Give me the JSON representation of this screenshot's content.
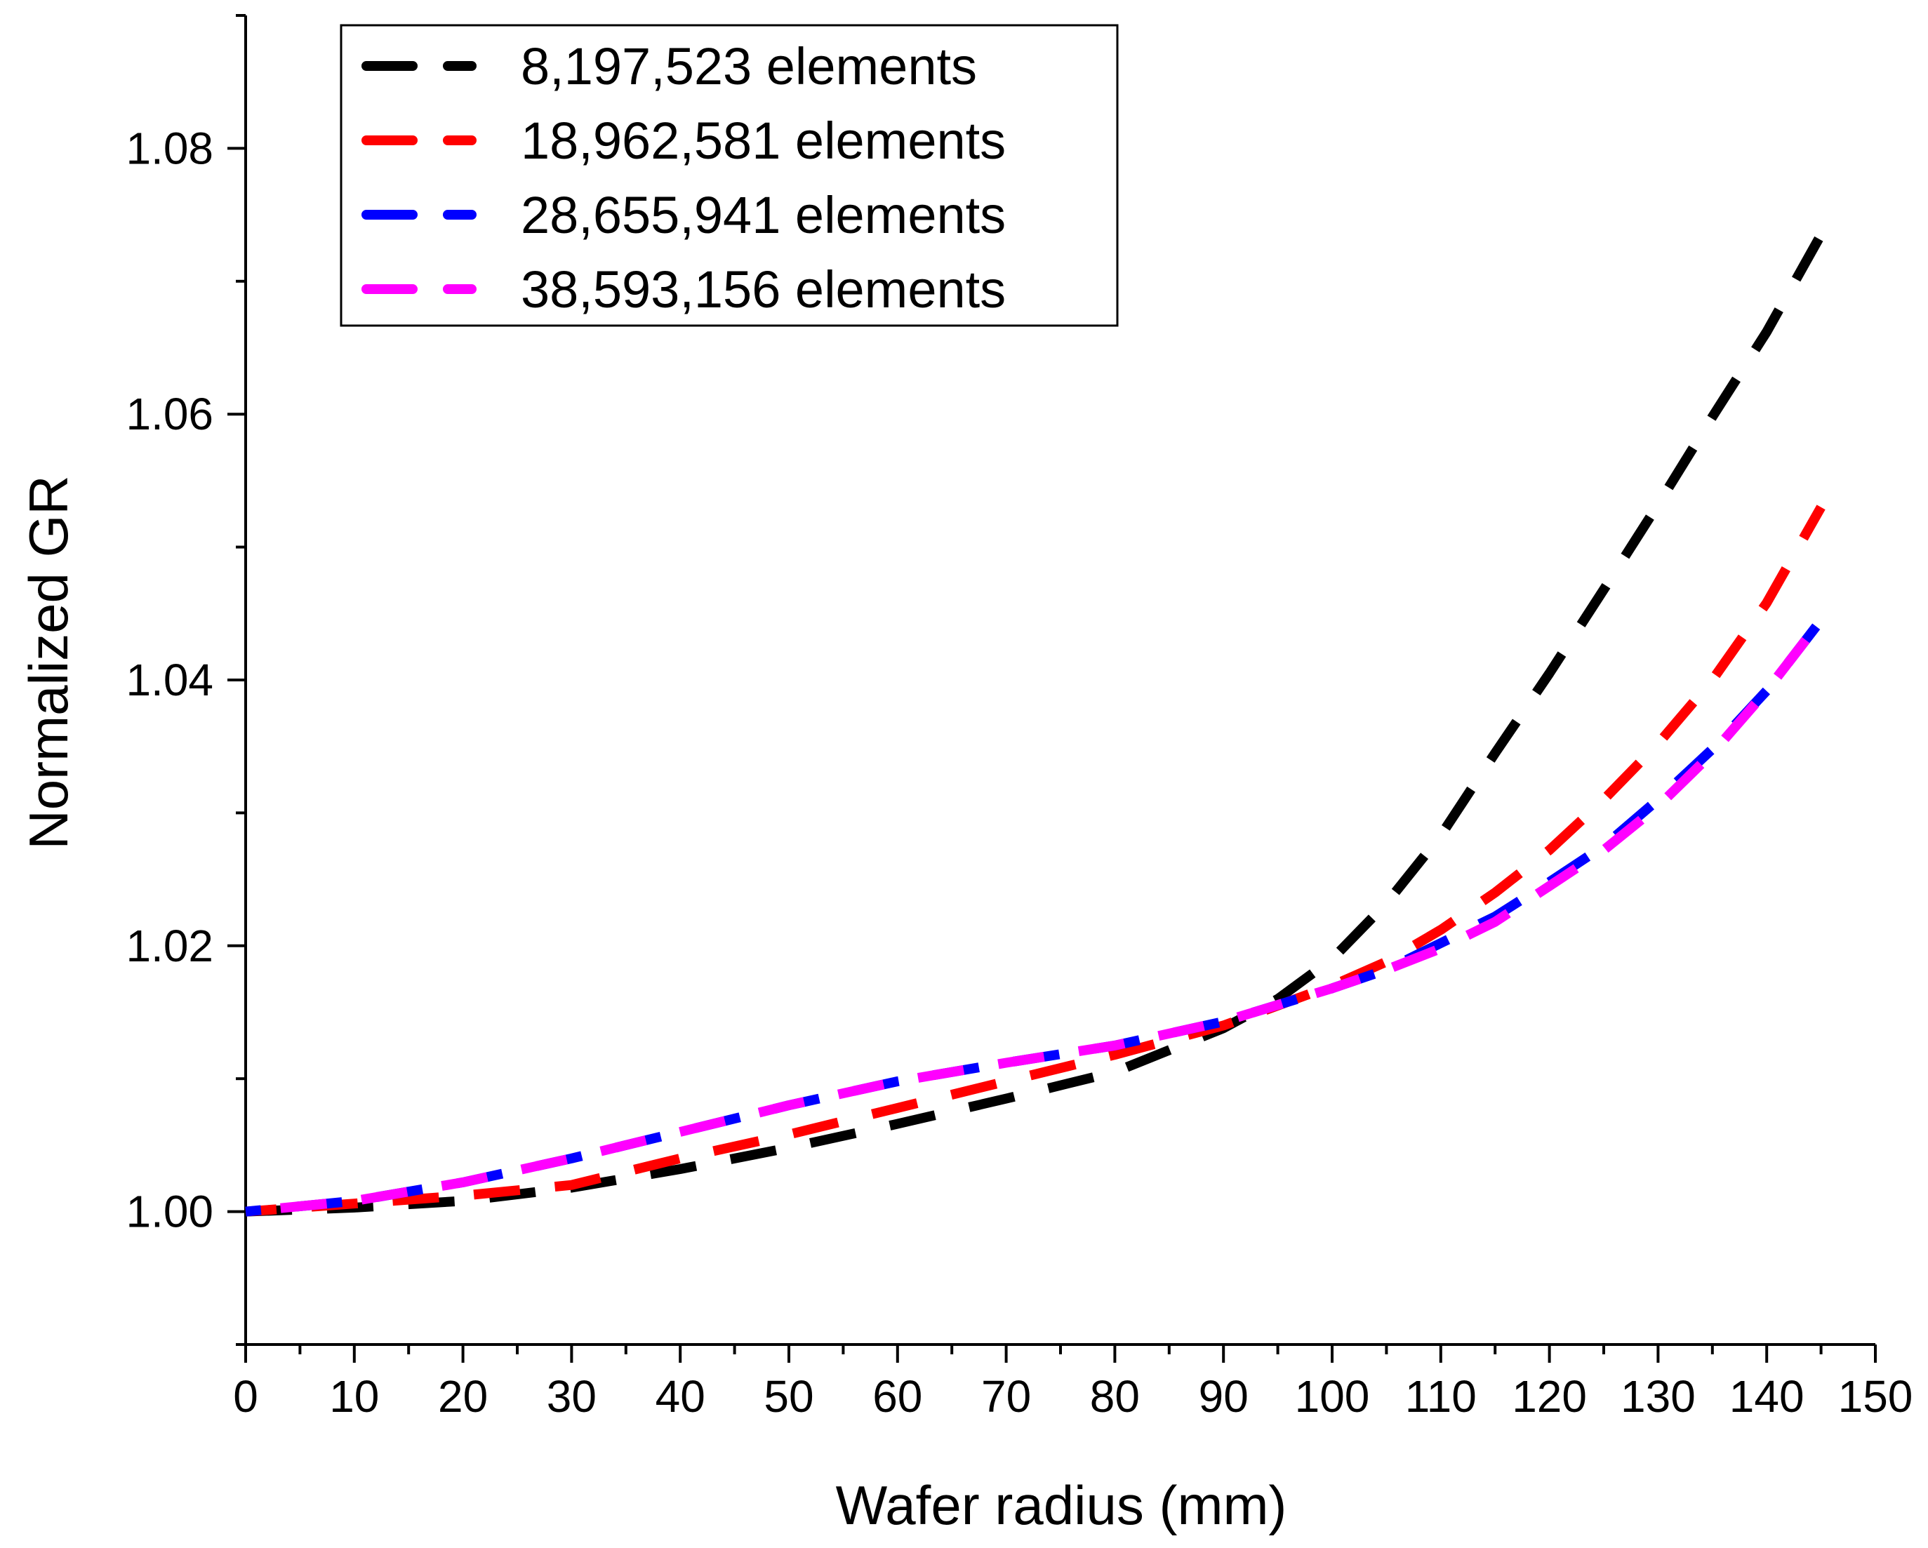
{
  "chart_data": {
    "type": "line",
    "title": "",
    "xlabel": "Wafer radius (mm)",
    "ylabel": "Normalized GR",
    "xlim": [
      0,
      150
    ],
    "ylim": [
      0.99,
      1.09
    ],
    "xticks": [
      0,
      10,
      20,
      30,
      40,
      50,
      60,
      70,
      80,
      90,
      100,
      110,
      120,
      130,
      140,
      150
    ],
    "xtick_labels": [
      "0",
      "10",
      "20",
      "30",
      "40",
      "50",
      "60",
      "70",
      "80",
      "90",
      "100",
      "110",
      "120",
      "130",
      "140",
      "150"
    ],
    "yticks": [
      1.0,
      1.02,
      1.04,
      1.06,
      1.08
    ],
    "ytick_labels": [
      "1.00",
      "1.02",
      "1.04",
      "1.06",
      "1.08"
    ],
    "grid": false,
    "legend_position": "top-left",
    "line_style": "dashed",
    "series": [
      {
        "name": "8,197,523 elements",
        "color": "#000000",
        "x": [
          0,
          10,
          20,
          30,
          40,
          50,
          60,
          70,
          80,
          90,
          95,
          100,
          105,
          110,
          115,
          120,
          125,
          130,
          135,
          140,
          145
        ],
        "y": [
          1.0,
          1.0003,
          1.0008,
          1.0018,
          1.0032,
          1.0048,
          1.0066,
          1.0085,
          1.0105,
          1.0138,
          1.016,
          1.019,
          1.0232,
          1.0283,
          1.0345,
          1.0405,
          1.0468,
          1.0532,
          1.0598,
          1.0662,
          1.0735
        ]
      },
      {
        "name": "18,962,581 elements",
        "color": "#ff0000",
        "x": [
          0,
          10,
          20,
          30,
          40,
          50,
          60,
          70,
          80,
          90,
          100,
          105,
          110,
          115,
          120,
          125,
          130,
          135,
          140,
          145
        ],
        "y": [
          1.0,
          1.0006,
          1.0012,
          1.002,
          1.004,
          1.0058,
          1.0078,
          1.0098,
          1.0118,
          1.014,
          1.017,
          1.0188,
          1.0212,
          1.024,
          1.0272,
          1.031,
          1.0352,
          1.04,
          1.0458,
          1.053
        ]
      },
      {
        "name": "28,655,941 elements",
        "color": "#0000ff",
        "x": [
          0,
          10,
          20,
          30,
          40,
          50,
          60,
          70,
          80,
          90,
          100,
          105,
          110,
          115,
          120,
          125,
          130,
          135,
          140,
          145
        ],
        "y": [
          1.0,
          1.0008,
          1.0022,
          1.004,
          1.006,
          1.008,
          1.0098,
          1.0112,
          1.0125,
          1.0143,
          1.0168,
          1.0182,
          1.0202,
          1.0222,
          1.0248,
          1.0275,
          1.031,
          1.0348,
          1.0392,
          1.0445
        ]
      },
      {
        "name": "38,593,156 elements",
        "color": "#ff00ff",
        "x": [
          0,
          10,
          20,
          30,
          40,
          50,
          60,
          70,
          80,
          90,
          100,
          105,
          110,
          115,
          120,
          125,
          130,
          135,
          140,
          145
        ],
        "y": [
          1.0,
          1.0008,
          1.0022,
          1.004,
          1.006,
          1.008,
          1.0098,
          1.0112,
          1.0125,
          1.0143,
          1.0168,
          1.0182,
          1.0198,
          1.0218,
          1.0245,
          1.0272,
          1.0305,
          1.0345,
          1.0392,
          1.0445
        ]
      }
    ]
  }
}
